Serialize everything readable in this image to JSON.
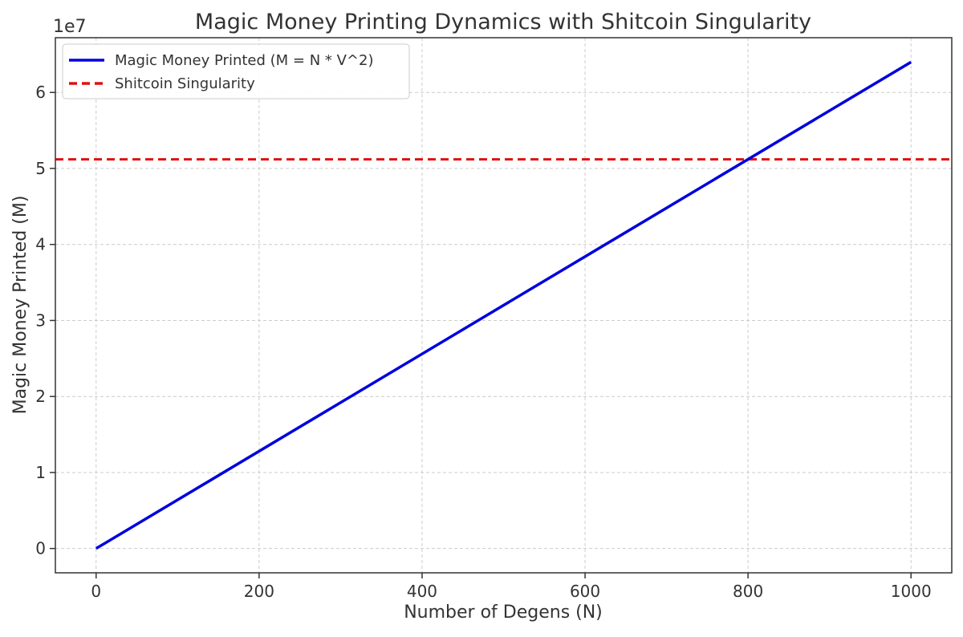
{
  "chart_data": {
    "type": "line",
    "title": "Magic Money Printing Dynamics with Shitcoin Singularity",
    "xlabel": "Number of Degens (N)",
    "ylabel": "Magic Money Printed (M)",
    "y_scale_label": "1e7",
    "xlim": [
      -50,
      1050
    ],
    "ylim": [
      -3200000,
      67200000
    ],
    "x_ticks": [
      0,
      200,
      400,
      600,
      800,
      1000
    ],
    "y_ticks": [
      0,
      10000000,
      20000000,
      30000000,
      40000000,
      50000000,
      60000000
    ],
    "y_tick_labels": [
      "0",
      "1",
      "2",
      "3",
      "4",
      "5",
      "6"
    ],
    "grid": true,
    "legend_position": "top-left",
    "series": [
      {
        "name": "Magic Money Printed (M = N * V^2)",
        "style": "solid",
        "color": "#0000dd",
        "x": [
          0,
          1000
        ],
        "y": [
          0,
          64000000
        ]
      },
      {
        "name": "Shitcoin Singularity",
        "style": "dashed",
        "color": "#e01010",
        "type": "hline",
        "y": 51200000
      }
    ]
  }
}
